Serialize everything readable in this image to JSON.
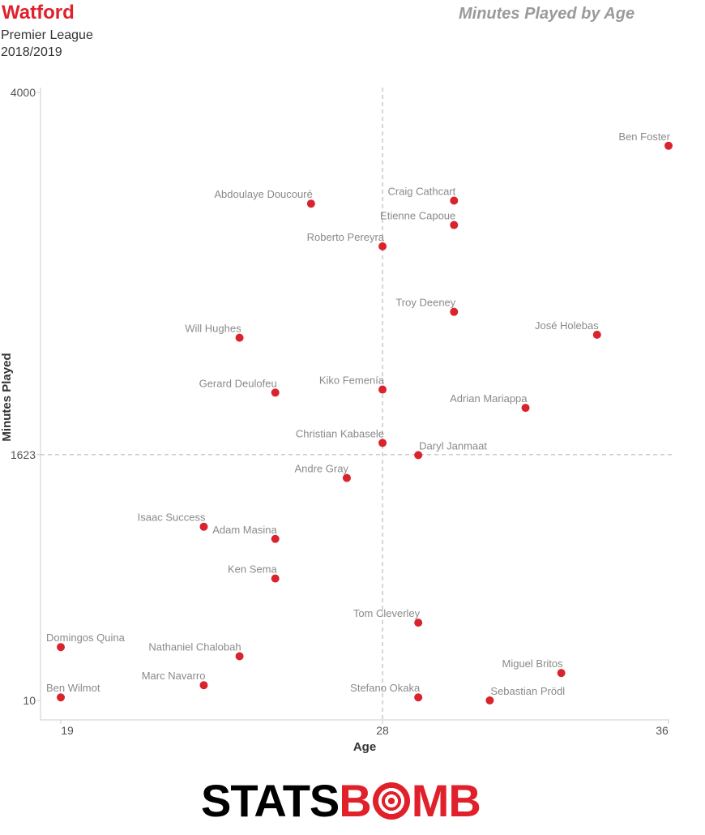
{
  "header": {
    "team": "Watford",
    "league": "Premier League",
    "season": "2018/2019",
    "title": "Minutes Played by Age"
  },
  "colors": {
    "team": "#e0202a",
    "point": "#d9232d",
    "title": "#9a9a9a",
    "label": "#8a8a8a",
    "reference": "#bbbbbb"
  },
  "branding": {
    "logo_left": "STATS",
    "logo_right_pre": "B",
    "logo_right_post": "MB"
  },
  "chart_data": {
    "type": "scatter",
    "xlabel": "Age",
    "ylabel": "Minutes Played",
    "xlim": [
      19,
      36
    ],
    "ylim": [
      10,
      4000
    ],
    "x_ticks": [
      19,
      28,
      36
    ],
    "y_ticks": [
      10,
      1623,
      4000
    ],
    "reference_lines": {
      "x": 28,
      "y": 1623
    },
    "grid": false,
    "points": [
      {
        "name": "Ben Foster",
        "age": 36,
        "minutes": 3650
      },
      {
        "name": "Abdoulaye Doucouré",
        "age": 26,
        "minutes": 3270
      },
      {
        "name": "Craig Cathcart",
        "age": 30,
        "minutes": 3290
      },
      {
        "name": "Etienne Capoue",
        "age": 30,
        "minutes": 3130
      },
      {
        "name": "Roberto Pereyra",
        "age": 28,
        "minutes": 2990
      },
      {
        "name": "Troy Deeney",
        "age": 30,
        "minutes": 2560
      },
      {
        "name": "José Holebas",
        "age": 34,
        "minutes": 2410
      },
      {
        "name": "Will Hughes",
        "age": 24,
        "minutes": 2390
      },
      {
        "name": "Gerard Deulofeu",
        "age": 25,
        "minutes": 2030
      },
      {
        "name": "Kiko Femenía",
        "age": 28,
        "minutes": 2050
      },
      {
        "name": "Adrian Mariappa",
        "age": 32,
        "minutes": 1930
      },
      {
        "name": "Christian Kabasele",
        "age": 28,
        "minutes": 1700
      },
      {
        "name": "Daryl Janmaat",
        "age": 29,
        "minutes": 1620
      },
      {
        "name": "Andre Gray",
        "age": 27,
        "minutes": 1470
      },
      {
        "name": "Isaac Success",
        "age": 23,
        "minutes": 1150
      },
      {
        "name": "Adam Masina",
        "age": 25,
        "minutes": 1070
      },
      {
        "name": "Ken Sema",
        "age": 25,
        "minutes": 810
      },
      {
        "name": "Tom Cleverley",
        "age": 29,
        "minutes": 520
      },
      {
        "name": "Domingos Quina",
        "age": 19,
        "minutes": 360
      },
      {
        "name": "Nathaniel Chalobah",
        "age": 24,
        "minutes": 300
      },
      {
        "name": "Miguel Britos",
        "age": 33,
        "minutes": 190
      },
      {
        "name": "Marc Navarro",
        "age": 23,
        "minutes": 110
      },
      {
        "name": "Ben Wilmot",
        "age": 19,
        "minutes": 30
      },
      {
        "name": "Stefano Okaka",
        "age": 29,
        "minutes": 30
      },
      {
        "name": "Sebastian Prödl",
        "age": 31,
        "minutes": 10
      }
    ]
  }
}
